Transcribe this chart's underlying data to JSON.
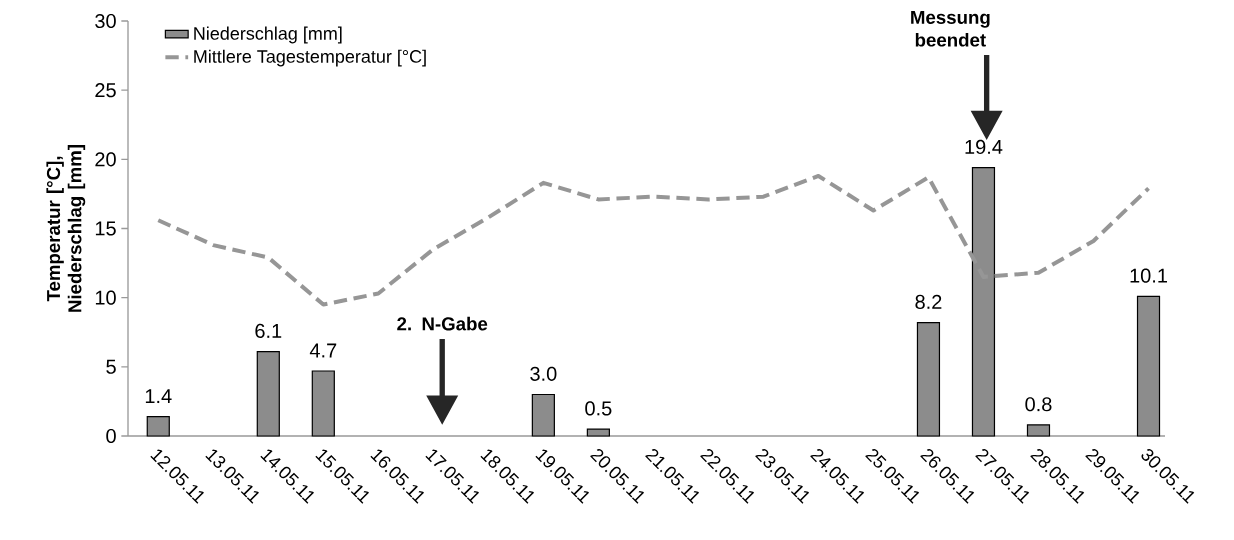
{
  "chart_data": {
    "type": "bar",
    "ylabel": "Temperatur [°C], Niederschlag [mm]",
    "categories": [
      "12.05.11",
      "13.05.11",
      "14.05.11",
      "15.05.11",
      "16.05.11",
      "17.05.11",
      "18.05.11",
      "19.05.11",
      "20.05.11",
      "21.05.11",
      "22.05.11",
      "23.05.11",
      "24.05.11",
      "25.05.11",
      "26.05.11",
      "27.05.11",
      "28.05.11",
      "29.05.11",
      "30.05.11"
    ],
    "ylim": [
      0,
      30
    ],
    "yticks": [
      0,
      5,
      10,
      15,
      20,
      25,
      30
    ],
    "legend": "top left",
    "series": [
      {
        "name": "Niederschlag [mm]",
        "color": "#8c8c8c",
        "values": [
          1.4,
          null,
          6.1,
          4.7,
          null,
          null,
          null,
          3.0,
          0.5,
          null,
          null,
          null,
          null,
          null,
          8.2,
          19.4,
          0.8,
          null,
          10.1
        ],
        "value_labels": [
          "1.4",
          null,
          "6.1",
          "4.7",
          null,
          null,
          null,
          "3.0",
          "0.5",
          null,
          null,
          null,
          null,
          null,
          "8.2",
          "19.4",
          "0.8",
          null,
          "10.1"
        ]
      },
      {
        "name": "Mittlere Tagestemperatur [°C]",
        "type": "line",
        "line_style": "dashed",
        "color": "#969696",
        "values": [
          15.6,
          13.8,
          12.9,
          9.5,
          10.3,
          13.5,
          15.8,
          18.3,
          17.1,
          17.3,
          17.1,
          17.3,
          18.8,
          16.3,
          18.7,
          11.5,
          11.8,
          14.1,
          17.9
        ]
      }
    ],
    "annotations": [
      "2. N-Gabe",
      "Messung beendet"
    ]
  }
}
